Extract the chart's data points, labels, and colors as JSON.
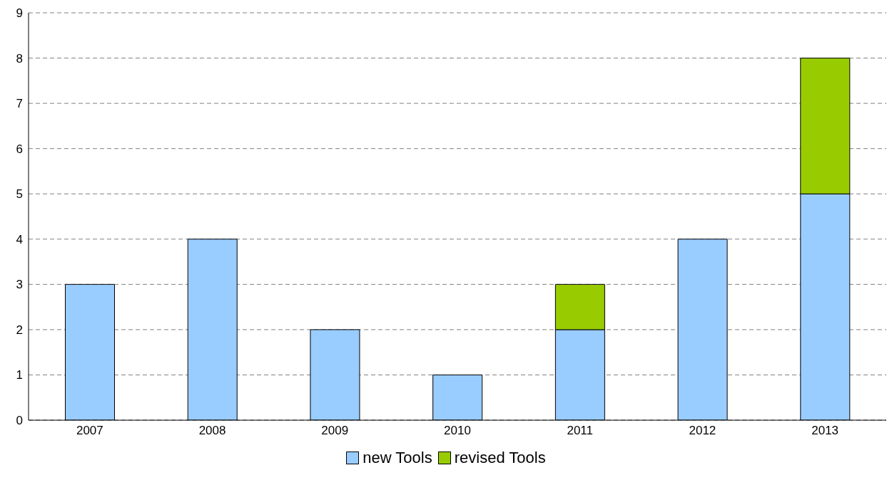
{
  "chart_data": {
    "type": "bar",
    "stacked": true,
    "categories": [
      "2007",
      "2008",
      "2009",
      "2010",
      "2011",
      "2012",
      "2013"
    ],
    "series": [
      {
        "name": "new Tools",
        "color": "#99ccff",
        "values": [
          3,
          4,
          2,
          1,
          2,
          4,
          5
        ]
      },
      {
        "name": "revised Tools",
        "color": "#99cc00",
        "values": [
          null,
          null,
          null,
          null,
          1,
          null,
          3
        ]
      }
    ],
    "ylim": [
      0,
      9
    ],
    "yticks": [
      0,
      1,
      2,
      3,
      4,
      5,
      6,
      7,
      8,
      9
    ],
    "grid": "y",
    "legend": "bottom"
  }
}
